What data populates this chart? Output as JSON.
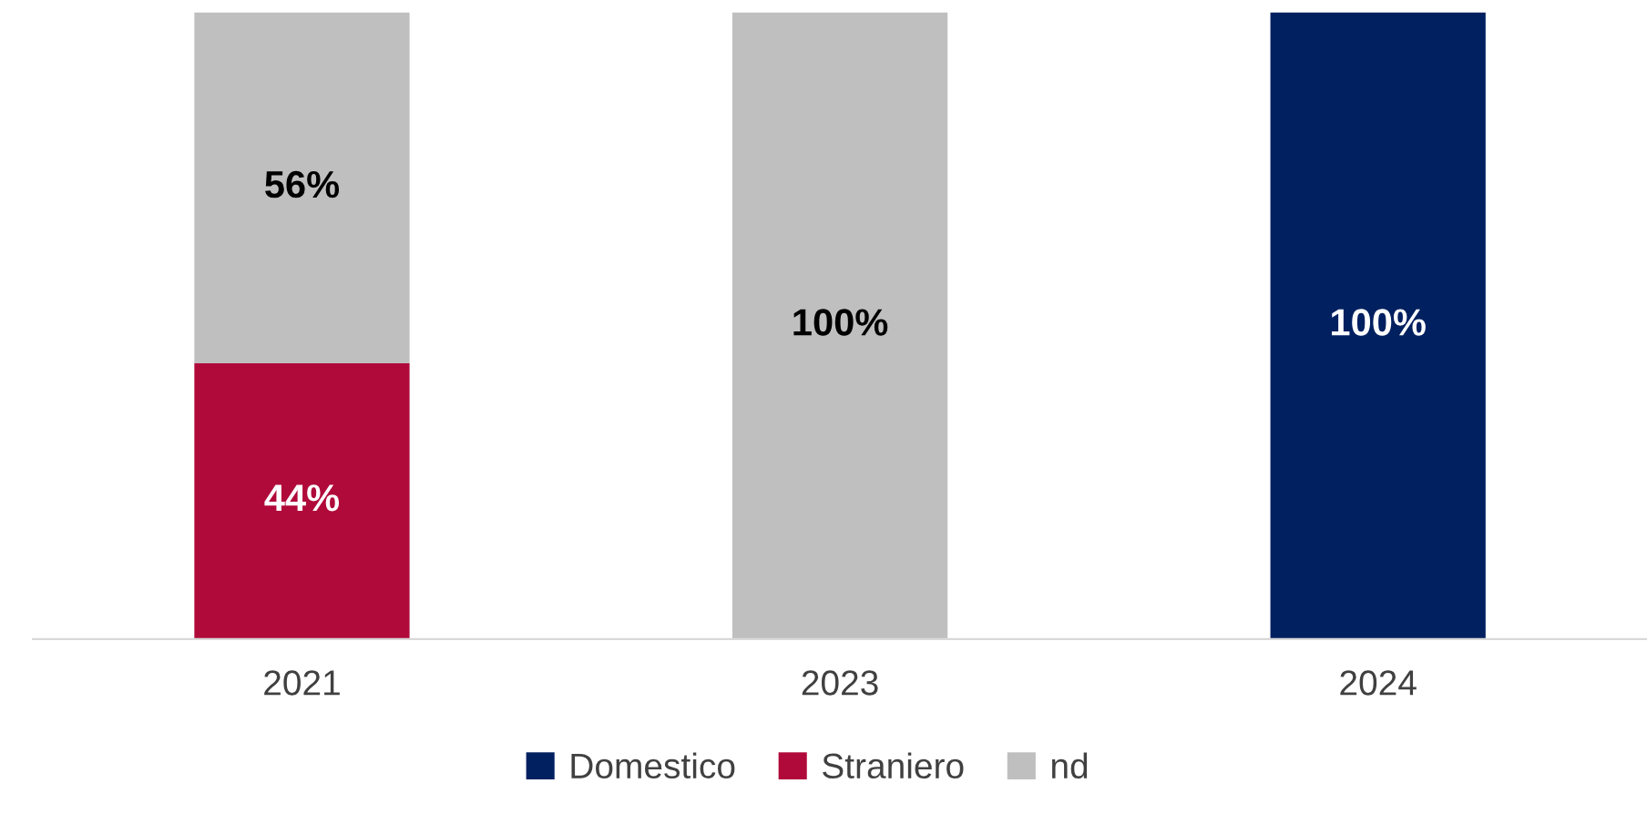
{
  "chart_data": {
    "type": "bar",
    "stacked": true,
    "categories": [
      "2021",
      "2023",
      "2024"
    ],
    "series": [
      {
        "name": "Domestico",
        "color": "#002060",
        "values": [
          0,
          0,
          100
        ],
        "value_labels": [
          null,
          null,
          "100%"
        ]
      },
      {
        "name": "Straniero",
        "color": "#b00a3a",
        "values": [
          44,
          0,
          0
        ],
        "value_labels": [
          "44%",
          null,
          null
        ]
      },
      {
        "name": "nd",
        "color": "#bfbfbf",
        "values": [
          56,
          100,
          0
        ],
        "value_labels": [
          "56%",
          "100%",
          null
        ]
      }
    ],
    "legend": "bottom",
    "grid": false
  }
}
